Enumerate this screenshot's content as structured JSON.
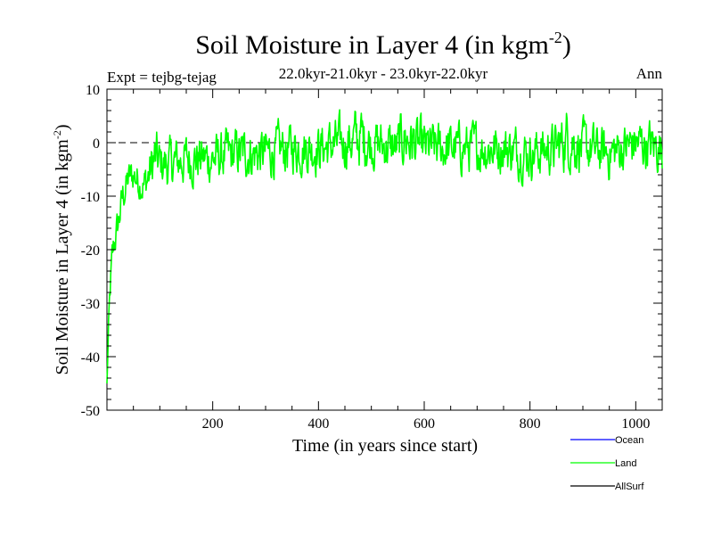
{
  "chart_data": {
    "type": "line",
    "title": "Soil Moisture in Layer 4 (in kgm",
    "title_sup": "-2",
    "title_close": ")",
    "subtitle": "22.0kyr-21.0kyr - 23.0kyr-22.0kyr",
    "expt_label": "Expt = tejbg-tejag",
    "period_label": "Ann",
    "xlabel": "Time (in years since start)",
    "ylabel": "Soil Moisture in Layer 4 (in kgm",
    "ylabel_sup": "-2",
    "ylabel_close": ")",
    "xlim": [
      0,
      1050
    ],
    "ylim": [
      -50,
      10
    ],
    "x_ticks": [
      200,
      400,
      600,
      800,
      1000
    ],
    "y_ticks": [
      10,
      0,
      -10,
      -20,
      -30,
      -40,
      -50
    ],
    "zero_line": 0,
    "legend": [
      {
        "name": "Ocean",
        "color": "#0000ff"
      },
      {
        "name": "Land",
        "color": "#00ff00"
      },
      {
        "name": "AllSurf",
        "color": "#000000"
      }
    ],
    "series": [
      {
        "name": "Land",
        "color": "#00ff00",
        "x": [
          0,
          3,
          6,
          10,
          15,
          20,
          25,
          30,
          40,
          50,
          60,
          70,
          80,
          90,
          100,
          120,
          150,
          200,
          250,
          300,
          350,
          400,
          450,
          480,
          500,
          550,
          560,
          600,
          650,
          700,
          750,
          800,
          850,
          870,
          900,
          950,
          1000,
          1050
        ],
        "y": [
          -45,
          -35,
          -28,
          -22,
          -18,
          -16,
          -13,
          -10,
          -7,
          -6,
          -7,
          -8,
          -6,
          -3,
          -4,
          -4,
          -3,
          -3,
          -2,
          -2,
          -1,
          -1,
          0,
          1,
          0,
          -1,
          1,
          -1,
          -1,
          -1,
          -1,
          -2,
          -1,
          1,
          -1,
          -2,
          0,
          -1
        ],
        "spread": [
          0,
          2,
          3,
          3,
          3,
          3,
          3,
          3,
          3,
          3,
          3,
          3,
          4,
          5,
          4,
          4,
          4,
          4,
          4,
          4,
          4,
          4,
          4,
          5,
          4,
          4,
          5,
          4,
          4,
          4,
          4,
          4,
          4,
          5,
          4,
          4,
          4,
          4
        ]
      }
    ]
  }
}
